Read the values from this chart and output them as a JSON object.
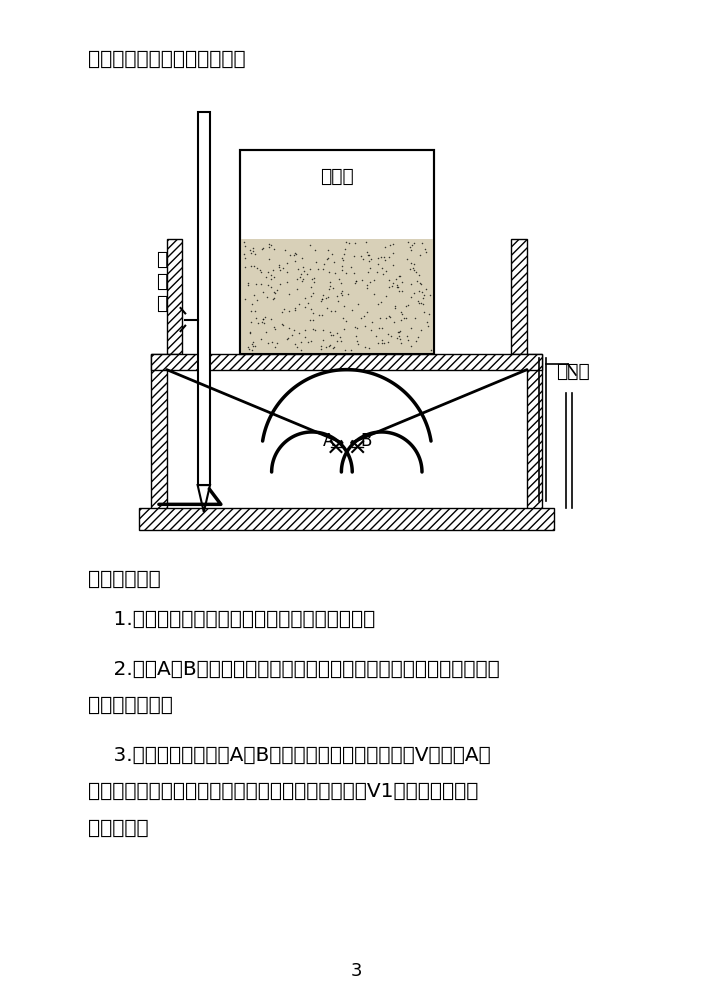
{
  "bg_color": "#ffffff",
  "text_color": "#000000",
  "page_width": 9.2,
  "page_height": 13.0,
  "top_text": "孔隙中得到的一种新试样）。",
  "section_title": "四、实验步骤",
  "step1": "    1.调整出水管，使得侧管与隔离板上平面水平。",
  "step2_line1": "    2.打开A、B开关，从进水管进水，让漏斗和隔离板充满水（出水管有",
  "step2_line2": "水排出即可）。",
  "step3_line1": "    3.孔隙度测量：关闭A、B开关，砂样筒装砂并量体积V。打开A开",
  "step3_line2": "关，给砂样筒补水，直到砂样饱和为至，记录进水量V1，即为砂样中孔",
  "step3_line3": "隙的体积。",
  "page_number": "3",
  "label_jinshui": "进\n水\n管",
  "label_chushui": "出水管",
  "label_shayangtong": "砂样筒",
  "label_A": "A",
  "label_B": "B"
}
